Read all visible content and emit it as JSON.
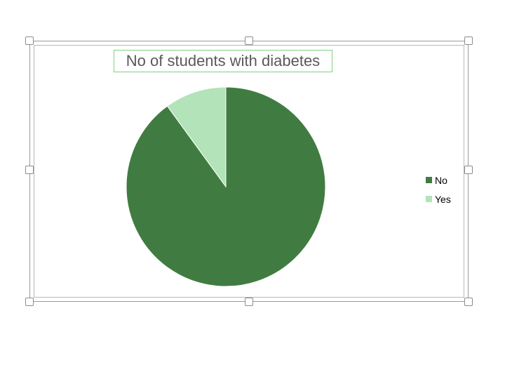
{
  "chart_data": {
    "type": "pie",
    "title": "No of students with diabetes",
    "categories": [
      "No",
      "Yes"
    ],
    "values": [
      90,
      10
    ],
    "colors": [
      "#407c41",
      "#b3e3b8"
    ],
    "legend_position": "right"
  }
}
